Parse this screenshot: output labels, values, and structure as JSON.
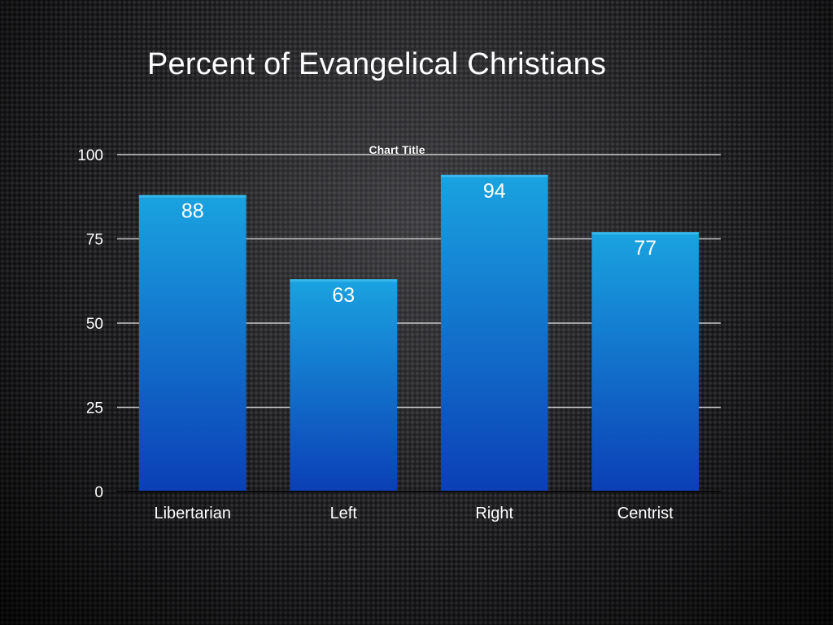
{
  "slide": {
    "title": "Percent of Evangelical Christians"
  },
  "chart_data": {
    "type": "bar",
    "title": "Chart Title",
    "categories": [
      "Libertarian",
      "Left",
      "Right",
      "Centrist"
    ],
    "values": [
      88,
      63,
      94,
      77
    ],
    "data_labels": [
      "88",
      "63",
      "94",
      "77"
    ],
    "ylim": [
      0,
      100
    ],
    "yticks": [
      0,
      25,
      50,
      75,
      100
    ],
    "ytick_labels": [
      "0",
      "25",
      "50",
      "75",
      "100"
    ],
    "xlabel": "",
    "ylabel": "",
    "grid": true,
    "legend": "none",
    "colors": {
      "bar_top": "#1aa3e0",
      "bar_bottom": "#0b3fb6",
      "grid": "#c8c8c8",
      "axis": "#0a0a0a",
      "text": "#ffffff"
    }
  }
}
